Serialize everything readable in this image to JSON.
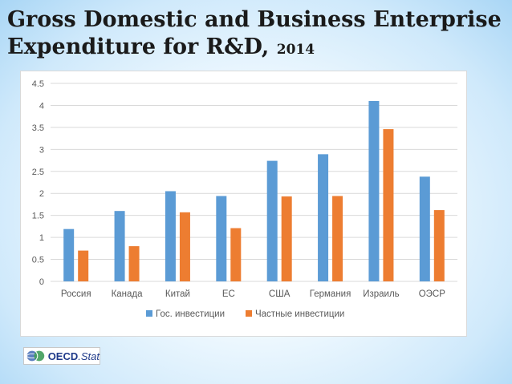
{
  "title": {
    "line1": "Gross Domestic and Business Enterprise",
    "line2": "Expenditure for R&D,",
    "year": "2014"
  },
  "logo": {
    "brand": "OECD",
    "dot": ".",
    "suffix": "Stat",
    "icon": "globe-icon"
  },
  "colors": {
    "series1": "#5B9BD5",
    "series2": "#ED7D31",
    "grid": "#d9d9d9",
    "tick_text": "#595959"
  },
  "chart_data": {
    "type": "bar",
    "title": "",
    "xlabel": "",
    "ylabel": "",
    "ylim": [
      0,
      4.5
    ],
    "yticks": [
      "0",
      "0.5",
      "1",
      "1.5",
      "2",
      "2.5",
      "3",
      "3.5",
      "4",
      "4.5"
    ],
    "grid": true,
    "legend_position": "bottom",
    "categories": [
      "Россия",
      "Канада",
      "Китай",
      "ЕС",
      "США",
      "Германия",
      "Израиль",
      "ОЭСР"
    ],
    "series": [
      {
        "name": "Гос. инвестиции",
        "values": [
          1.19,
          1.6,
          2.05,
          1.94,
          2.74,
          2.89,
          4.1,
          2.38
        ]
      },
      {
        "name": "Частные инвестиции",
        "values": [
          0.7,
          0.8,
          1.57,
          1.21,
          1.93,
          1.94,
          3.46,
          1.62
        ]
      }
    ]
  }
}
